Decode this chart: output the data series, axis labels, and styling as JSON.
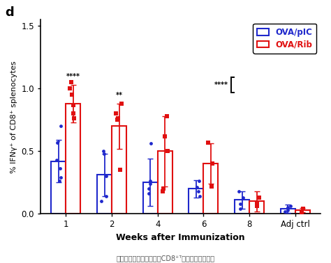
{
  "title_label": "d",
  "xlabel": "Weeks after Immunization",
  "ylabel": "% IFNγ⁺ of CD8⁺ splenocytes",
  "categories": [
    "1",
    "2",
    "4",
    "6",
    "8",
    "Adj ctrl"
  ],
  "blue_means": [
    0.42,
    0.31,
    0.25,
    0.2,
    0.11,
    0.04
  ],
  "red_means": [
    0.88,
    0.7,
    0.5,
    0.4,
    0.1,
    0.03
  ],
  "blue_errs": [
    0.17,
    0.17,
    0.19,
    0.07,
    0.07,
    0.035
  ],
  "red_errs": [
    0.15,
    0.18,
    0.28,
    0.16,
    0.08,
    0.015
  ],
  "blue_dots": [
    [
      0.26,
      0.29,
      0.36,
      0.43,
      0.57,
      0.7
    ],
    [
      0.1,
      0.14,
      0.3,
      0.48,
      0.5
    ],
    [
      0.16,
      0.2,
      0.24,
      0.26,
      0.56
    ],
    [
      0.14,
      0.18,
      0.21,
      0.26
    ],
    [
      0.04,
      0.08,
      0.13,
      0.18
    ],
    [
      0.02,
      0.03,
      0.05,
      0.06
    ]
  ],
  "red_dots": [
    [
      0.76,
      0.8,
      0.87,
      0.95,
      1.0,
      1.05
    ],
    [
      0.35,
      0.75,
      0.76,
      0.8,
      0.88
    ],
    [
      0.18,
      0.2,
      0.5,
      0.62,
      0.78
    ],
    [
      0.22,
      0.4,
      0.57
    ],
    [
      0.06,
      0.08,
      0.13
    ],
    [
      0.01,
      0.04
    ]
  ],
  "sig_labels": {
    "0": "****",
    "1": "**"
  },
  "overall_sig": "****",
  "blue_color": "#1f28cc",
  "red_color": "#e01010",
  "bar_width": 0.32,
  "ylim": [
    0.0,
    1.55
  ],
  "yticks": [
    0.0,
    0.5,
    1.0,
    1.5
  ],
  "legend_labels": [
    "OVA/pIC",
    "OVA/Rib"
  ],
  "caption": "抗癌疫苗（红色）诱导的CD8⁺ᵀ细胞增殖持续时间"
}
